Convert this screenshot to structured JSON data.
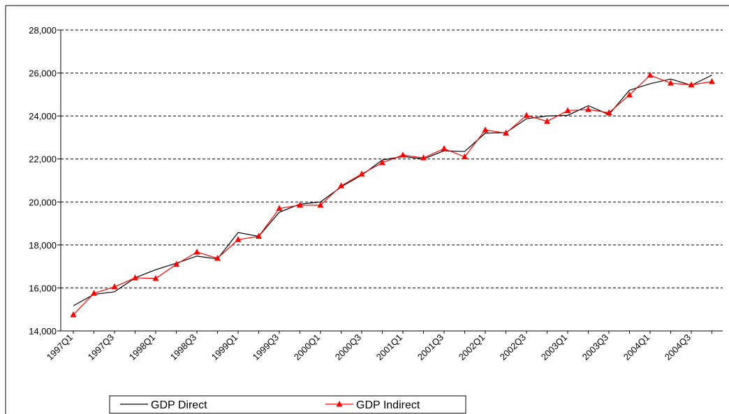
{
  "chart_data": {
    "type": "line",
    "categories": [
      "1997Q1",
      null,
      "1997Q3",
      null,
      "1998Q1",
      null,
      "1998Q3",
      null,
      "1999Q1",
      null,
      "1999Q3",
      null,
      "2000Q1",
      null,
      "2000Q3",
      null,
      "2001Q1",
      null,
      "2001Q3",
      null,
      "2002Q1",
      null,
      "2002Q3",
      null,
      "2003Q1",
      null,
      "2003Q3",
      null,
      "2004Q1",
      null,
      "2004Q3",
      null
    ],
    "series": [
      {
        "name": "GDP Direct",
        "color": "#000000",
        "marker": false,
        "values": [
          15170,
          15700,
          15820,
          16470,
          16850,
          17150,
          17480,
          17350,
          18580,
          18400,
          19520,
          19900,
          20000,
          20700,
          21250,
          21950,
          22120,
          22000,
          22380,
          22350,
          23200,
          23230,
          23870,
          24000,
          24030,
          24480,
          24070,
          25200,
          25500,
          25720,
          25430,
          25900
        ]
      },
      {
        "name": "GDP Indirect",
        "color": "#ff0000",
        "marker": true,
        "values": [
          14750,
          15750,
          16050,
          16470,
          16440,
          17100,
          17670,
          17380,
          18250,
          18400,
          19700,
          19850,
          19850,
          20750,
          21300,
          21830,
          22180,
          22050,
          22480,
          22100,
          23350,
          23200,
          24030,
          23750,
          24250,
          24300,
          24150,
          24980,
          25900,
          25530,
          25450,
          25600
        ]
      }
    ],
    "ylim": [
      14000,
      28000
    ],
    "yticks": [
      {
        "value": 14000,
        "label": "14,000"
      },
      {
        "value": 16000,
        "label": "16,000"
      },
      {
        "value": 18000,
        "label": "18,000"
      },
      {
        "value": 20000,
        "label": "20,000"
      },
      {
        "value": 22000,
        "label": "22,000"
      },
      {
        "value": 24000,
        "label": "24,000"
      },
      {
        "value": 26000,
        "label": "26,000"
      },
      {
        "value": 28000,
        "label": "28,000"
      }
    ],
    "grid": true
  }
}
